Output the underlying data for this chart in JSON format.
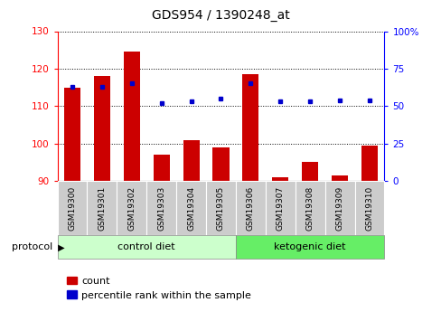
{
  "title": "GDS954 / 1390248_at",
  "samples": [
    "GSM19300",
    "GSM19301",
    "GSM19302",
    "GSM19303",
    "GSM19304",
    "GSM19305",
    "GSM19306",
    "GSM19307",
    "GSM19308",
    "GSM19309",
    "GSM19310"
  ],
  "count_values": [
    115.0,
    118.0,
    124.5,
    97.0,
    101.0,
    99.0,
    118.5,
    91.0,
    95.0,
    91.5,
    99.5
  ],
  "percentile_values": [
    63,
    63,
    65,
    52,
    53,
    55,
    65,
    53,
    53,
    54,
    54
  ],
  "ylim_left": [
    90,
    130
  ],
  "ylim_right": [
    0,
    100
  ],
  "yticks_left": [
    90,
    100,
    110,
    120,
    130
  ],
  "yticks_right": [
    0,
    25,
    50,
    75,
    100
  ],
  "bar_color": "#cc0000",
  "dot_color": "#0000cc",
  "bar_bottom": 90,
  "groups": [
    {
      "label": "control diet",
      "start": 0,
      "end": 5,
      "color": "#ccffcc"
    },
    {
      "label": "ketogenic diet",
      "start": 6,
      "end": 10,
      "color": "#66ee66"
    }
  ],
  "protocol_label": "protocol",
  "legend_count_label": "count",
  "legend_pct_label": "percentile rank within the sample",
  "tick_bg_color": "#cccccc",
  "background_color": "#ffffff"
}
